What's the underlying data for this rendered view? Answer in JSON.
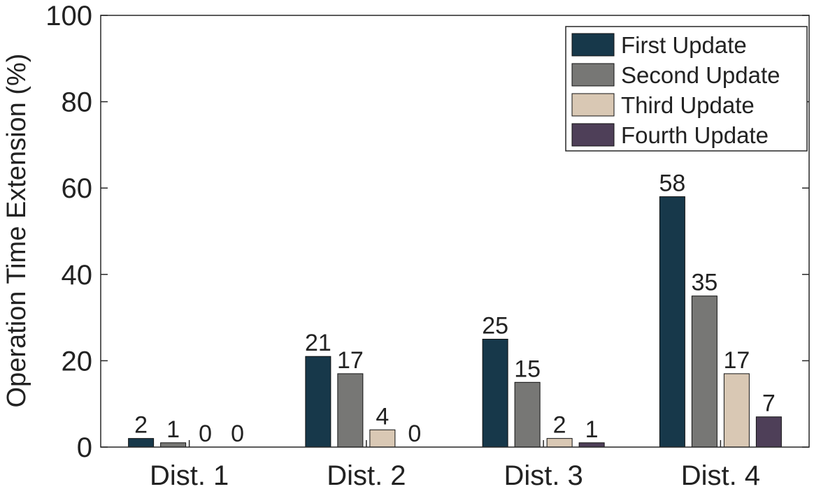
{
  "chart_data": {
    "type": "bar",
    "title": "",
    "xlabel": "",
    "ylabel": "Operation Time Extension (%)",
    "ylim": [
      0,
      100
    ],
    "yticks": [
      0,
      20,
      40,
      60,
      80,
      100
    ],
    "grid": false,
    "legend_position": "top-right",
    "categories": [
      "Dist. 1",
      "Dist. 2",
      "Dist. 3",
      "Dist. 4"
    ],
    "series": [
      {
        "name": "First Update",
        "color": "#17384a",
        "values": [
          2,
          21,
          25,
          58
        ],
        "labels": [
          "2",
          "21",
          "25",
          "58"
        ]
      },
      {
        "name": "Second Update",
        "color": "#777775",
        "values": [
          1,
          17,
          15,
          35
        ],
        "labels": [
          "1",
          "17",
          "15",
          "35"
        ]
      },
      {
        "name": "Third Update",
        "color": "#d9c8b4",
        "values": [
          0,
          4,
          2,
          17
        ],
        "labels": [
          "0",
          "4",
          "2",
          "17"
        ]
      },
      {
        "name": "Fourth Update",
        "color": "#4e3f58",
        "values": [
          0,
          0,
          1,
          7
        ],
        "labels": [
          "0",
          "0",
          "1",
          "7"
        ]
      }
    ]
  }
}
